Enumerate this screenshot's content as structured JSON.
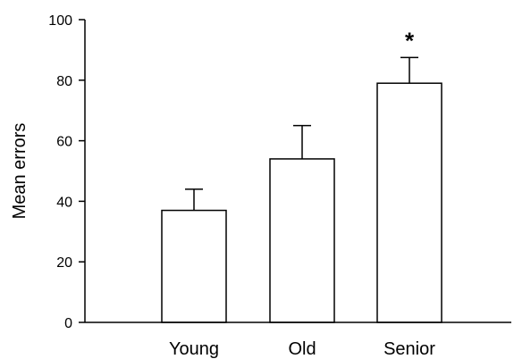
{
  "chart_data": {
    "type": "bar",
    "title": "",
    "xlabel": "",
    "ylabel": "Mean errors",
    "categories": [
      "Young",
      "Old",
      "Senior"
    ],
    "values": [
      37,
      54,
      79
    ],
    "error_upper": [
      44,
      65,
      87.5
    ],
    "ylim": [
      0,
      100
    ],
    "yticks": [
      "0",
      "20",
      "40",
      "60",
      "80",
      "100"
    ],
    "grid": false,
    "legend": "none",
    "annotations": [
      {
        "category": "Senior",
        "text": "*"
      }
    ],
    "bar_fill": "#ffffff",
    "bar_stroke": "#000000"
  }
}
